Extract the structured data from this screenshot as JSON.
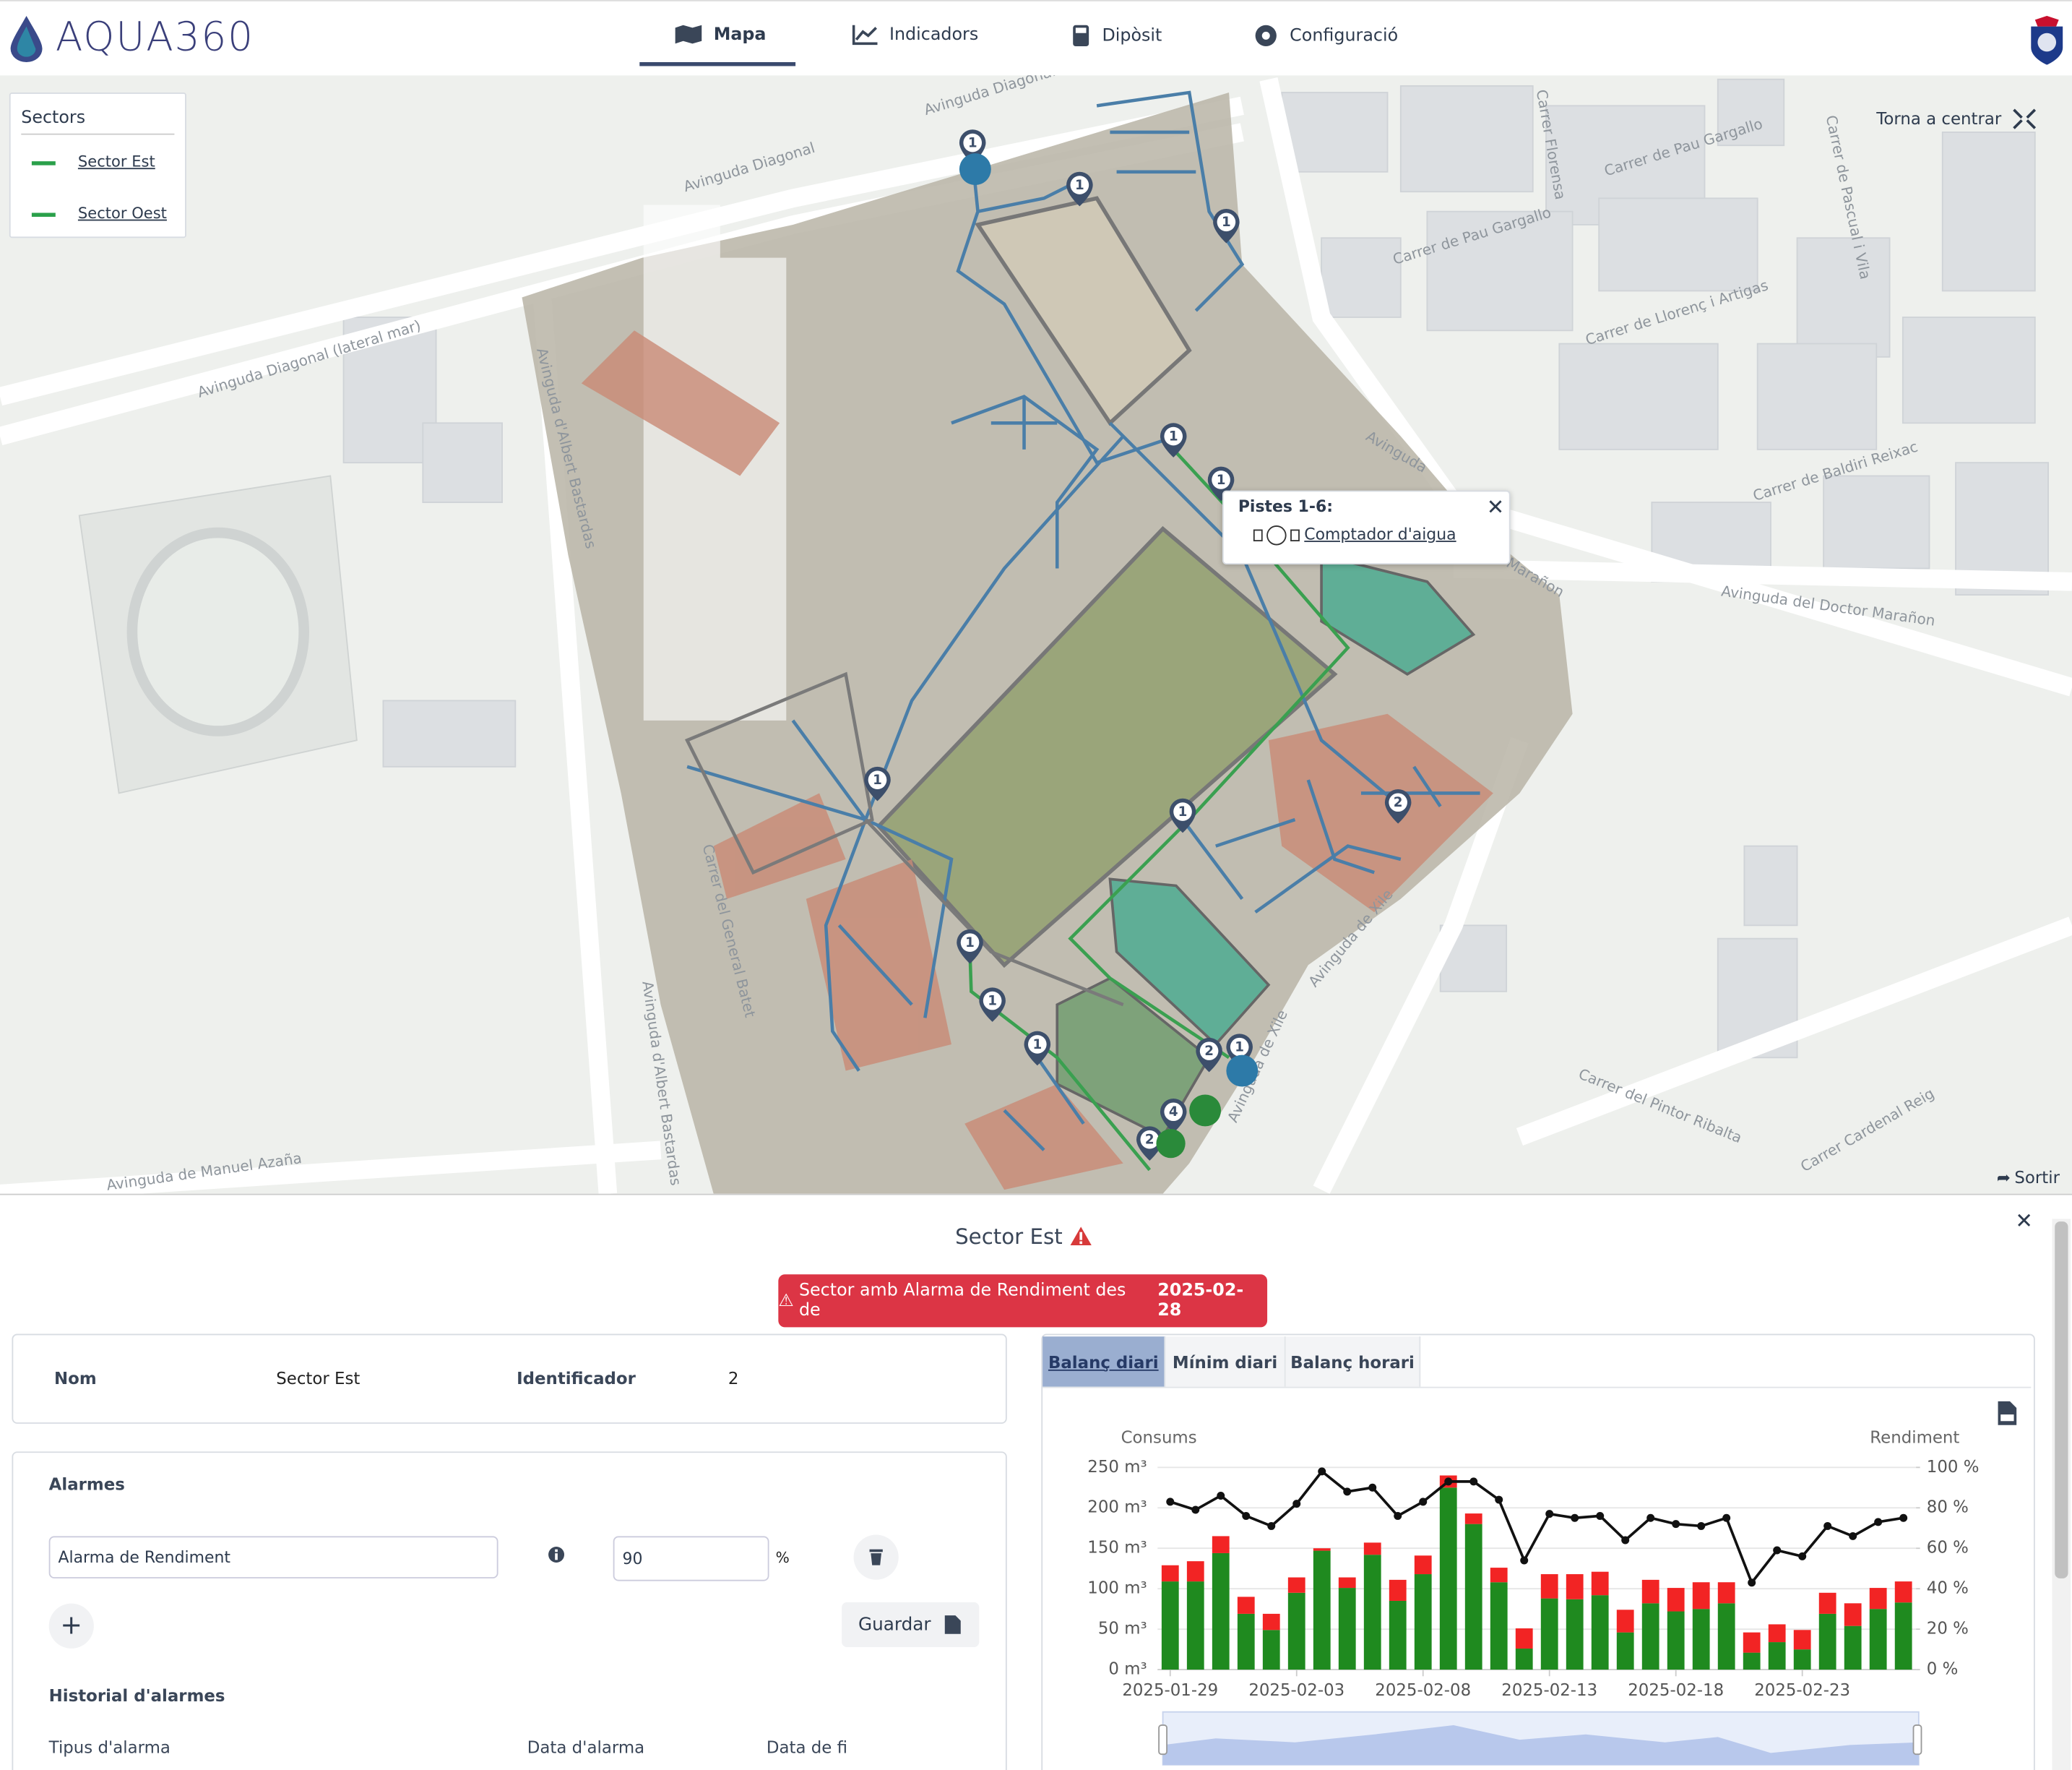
{
  "header": {
    "logo": "AQUA360",
    "nav": [
      "Mapa",
      "Indicadors",
      "Dipòsit",
      "Configuració"
    ]
  },
  "map": {
    "legend_title": "Sectors",
    "legend_items": [
      "Sector Est",
      "Sector Oest"
    ],
    "recenter": "Torna a centrar",
    "popup_title": "Pistes 1-6:",
    "popup_link": "Comptador d'aigua",
    "exit": "Sortir",
    "streets": [
      "Avinguda Diagonal",
      "Avinguda Diagonal",
      "Avinguda Diagonal (lateral mar)",
      "Avinguda d'Albert Bastardas",
      "Avinguda d'Albert Bastardas",
      "Carrer del General Batet",
      "Carrer de Pau Gargallo",
      "Carrer de Pau Gargallo",
      "Carrer de Llorenç i Artigas",
      "Carrer de Baldiri Reixac",
      "Avinguda del Doctor Marañon",
      "Avinguda de Xile",
      "Avinguda de Xile",
      "Carrer del Pintor Ribalta",
      "Carrer Cardenal Reig",
      "Carrer de Pascual i Vila",
      "Avinguda de Manuel Azaña",
      "Carrer Florensa",
      "Avinguda",
      "Marañon"
    ],
    "markers": [
      "1",
      "1",
      "1",
      "1",
      "1",
      "1",
      "1",
      "2",
      "1",
      "1",
      "1",
      "2",
      "1",
      "4",
      "2"
    ]
  },
  "panel": {
    "title": "Sector Est",
    "alert_text": "Sector amb Alarma de Rendiment des de ",
    "alert_date": "2025-02-28",
    "info": {
      "name_label": "Nom",
      "name": "Sector Est",
      "id_label": "Identificador",
      "id": "2"
    },
    "alarms_title": "Alarmes",
    "alarm_type": "Alarma de Rendiment",
    "alarm_value": "90",
    "alarm_unit": "%",
    "save": "Guardar",
    "history_title": "Historial d'alarmes",
    "history_columns": [
      "Tipus d'alarma",
      "Data d'alarma",
      "Data de fi"
    ],
    "tabs": [
      "Balanç diari",
      "Mínim diari",
      "Balanç horari"
    ]
  },
  "chart_data": {
    "type": "bar",
    "y_label": "Consums",
    "y2_label": "Rendiment",
    "categories": [
      "2025-01-29",
      null,
      null,
      null,
      null,
      "2025-02-03",
      null,
      null,
      null,
      null,
      "2025-02-08",
      null,
      null,
      null,
      null,
      "2025-02-13",
      null,
      null,
      null,
      null,
      "2025-02-18",
      null,
      null,
      null,
      null,
      "2025-02-23",
      null,
      null,
      null,
      null
    ],
    "series": [
      {
        "color": "#1f8a1f",
        "values": [
          109,
          109,
          144,
          69,
          49,
          95,
          147,
          101,
          142,
          85,
          118,
          225,
          180,
          108,
          26,
          88,
          87,
          92,
          46,
          82,
          72,
          75,
          82,
          21,
          34,
          25,
          69,
          54,
          75,
          83
        ]
      },
      {
        "color": "#f22424",
        "values": [
          20,
          25,
          21,
          21,
          20,
          19,
          3,
          13,
          15,
          26,
          23,
          15,
          13,
          18,
          25,
          30,
          31,
          29,
          28,
          29,
          29,
          33,
          26,
          25,
          22,
          24,
          26,
          28,
          26,
          26
        ]
      },
      {
        "type": "line",
        "axis": "y2",
        "color": "#111111",
        "values": [
          83,
          79,
          86,
          76,
          71,
          82,
          98,
          88,
          90,
          76,
          83,
          93,
          93,
          84,
          54,
          77,
          75,
          76,
          64,
          75,
          72,
          71,
          75,
          43,
          59,
          56,
          71,
          66,
          73,
          75
        ]
      }
    ],
    "ylim": [
      0,
      250
    ],
    "yticks": [
      {
        "value": 0,
        "label": "0 m³"
      },
      {
        "value": 50,
        "label": "50 m³"
      },
      {
        "value": 100,
        "label": "100 m³"
      },
      {
        "value": 150,
        "label": "150 m³"
      },
      {
        "value": 200,
        "label": "200 m³"
      },
      {
        "value": 250,
        "label": "250 m³"
      }
    ],
    "y2lim": [
      0,
      100
    ],
    "y2ticks": [
      {
        "value": 0,
        "label": "0 %"
      },
      {
        "value": 20,
        "label": "20 %"
      },
      {
        "value": 40,
        "label": "40 %"
      },
      {
        "value": 60,
        "label": "60 %"
      },
      {
        "value": 80,
        "label": "80 %"
      },
      {
        "value": 100,
        "label": "100 %"
      }
    ],
    "grid": true
  }
}
